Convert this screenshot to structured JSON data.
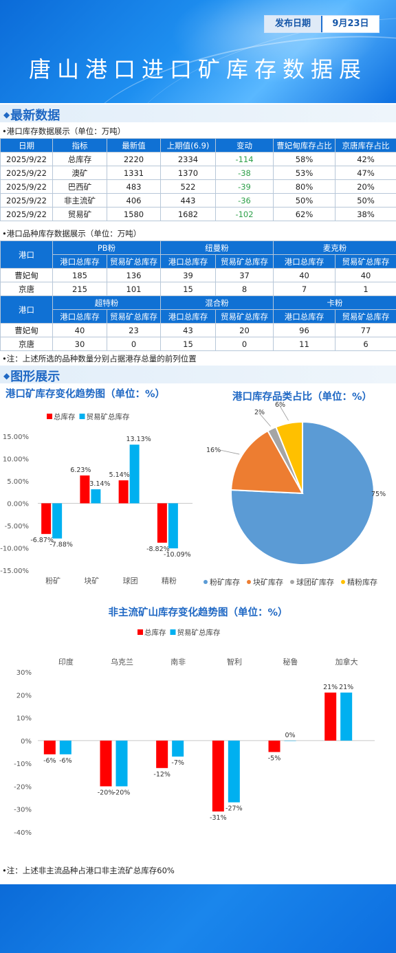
{
  "header": {
    "date_label": "发布日期",
    "date_value": "9月23日",
    "title": "唐山港口进口矿库存数据展"
  },
  "sections": {
    "latest": "最新数据",
    "charts": "图形展示"
  },
  "table1": {
    "caption": "•港口库存数据展示（单位：万吨）",
    "headers": [
      "日期",
      "指标",
      "最新值",
      "上期值(6.9)",
      "变动",
      "曹妃甸库存占比",
      "京唐库存占比"
    ],
    "rows": [
      [
        "2025/9/22",
        "总库存",
        "2220",
        "2334",
        "-114",
        "58%",
        "42%"
      ],
      [
        "2025/9/22",
        "澳矿",
        "1331",
        "1370",
        "-38",
        "53%",
        "47%"
      ],
      [
        "2025/9/22",
        "巴西矿",
        "483",
        "522",
        "-39",
        "80%",
        "20%"
      ],
      [
        "2025/9/22",
        "非主流矿",
        "406",
        "443",
        "-36",
        "50%",
        "50%"
      ],
      [
        "2025/9/22",
        "贸易矿",
        "1580",
        "1682",
        "-102",
        "62%",
        "38%"
      ]
    ]
  },
  "table2": {
    "caption": "•港口品种库存数据展示（单位：万吨）",
    "port_label": "港口",
    "sub_headers": [
      "港口总库存",
      "贸易矿总库存"
    ],
    "groups_a": [
      "PB粉",
      "纽曼粉",
      "麦克粉"
    ],
    "rows_a": [
      [
        "曹妃甸",
        "185",
        "136",
        "39",
        "37",
        "40",
        "40"
      ],
      [
        "京唐",
        "215",
        "101",
        "15",
        "8",
        "7",
        "1"
      ]
    ],
    "groups_b": [
      "超特粉",
      "混合粉",
      "卡粉"
    ],
    "rows_b": [
      [
        "曹妃甸",
        "40",
        "23",
        "43",
        "20",
        "96",
        "77"
      ],
      [
        "京唐",
        "30",
        "0",
        "15",
        "0",
        "11",
        "6"
      ]
    ],
    "note": "•注：上述所选的品种数量分别占据港存总量的前列位置"
  },
  "chart_data": [
    {
      "type": "bar",
      "title": "港口矿库存变化趋势图（单位：%）",
      "categories": [
        "粉矿",
        "块矿",
        "球团",
        "精粉"
      ],
      "series": [
        {
          "name": "总库存",
          "values": [
            -6.87,
            6.23,
            5.14,
            -8.82
          ],
          "color": "#ff0000"
        },
        {
          "name": "贸易矿总库存",
          "values": [
            -7.88,
            3.14,
            13.13,
            -10.09
          ],
          "color": "#00b0f0"
        }
      ],
      "value_labels": [
        [
          "-6.87%",
          "6.23%",
          "5.14%",
          "-8.82%"
        ],
        [
          "-7.88%",
          "3.14%",
          "13.13%",
          "-10.09%"
        ]
      ],
      "ylim": [
        -15,
        15
      ],
      "yticks": [
        "15.00%",
        "10.00%",
        "5.00%",
        "0.00%",
        "-5.00%",
        "-10.00%",
        "-15.00%"
      ],
      "legend": "top"
    },
    {
      "type": "pie",
      "title": "港口库存品类占比（单位：%）",
      "labels": [
        "粉矿库存",
        "块矿库存",
        "球团矿库存",
        "精粉库存"
      ],
      "values": [
        75,
        16,
        2,
        6
      ],
      "value_labels": [
        "75%",
        "16%",
        "2%",
        "6%"
      ],
      "colors": [
        "#5b9bd5",
        "#ed7d31",
        "#a5a5a5",
        "#ffc000"
      ],
      "legend": "bottom"
    },
    {
      "type": "bar",
      "title": "非主流矿山库存变化趋势图（单位：%）",
      "categories": [
        "印度",
        "乌克兰",
        "南非",
        "智利",
        "秘鲁",
        "加拿大"
      ],
      "series": [
        {
          "name": "总库存",
          "values": [
            -6,
            -20,
            -12,
            -31,
            -5,
            21
          ],
          "color": "#ff0000"
        },
        {
          "name": "贸易矿总库存",
          "values": [
            -6,
            -20,
            -7,
            -27,
            0,
            21
          ],
          "color": "#00b0f0"
        }
      ],
      "value_labels": [
        [
          "-6%",
          "-20%",
          "-12%",
          "-31%",
          "-5%",
          "21%"
        ],
        [
          "-6%",
          "-20%",
          "-7%",
          "-27%",
          "0%",
          "21%"
        ]
      ],
      "ylim": [
        -40,
        30
      ],
      "yticks": [
        "30%",
        "20%",
        "10%",
        "0%",
        "-10%",
        "-20%",
        "-30%",
        "-40%"
      ],
      "legend": "top"
    }
  ],
  "note2": "•注：上述非主流品种占港口非主流矿总库存60%"
}
